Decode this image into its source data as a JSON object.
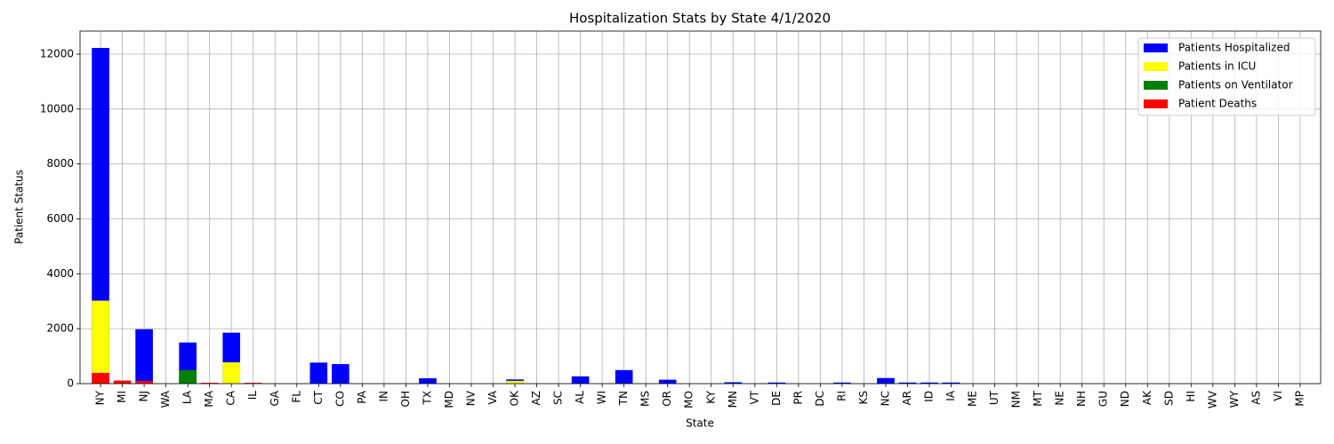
{
  "chart_data": {
    "type": "bar",
    "title": "Hospitalization Stats by State 4/1/2020",
    "x_label": "State",
    "y_label": "Patient Status",
    "categories": [
      "NY",
      "MI",
      "NJ",
      "WA",
      "LA",
      "MA",
      "CA",
      "IL",
      "GA",
      "FL",
      "CT",
      "CO",
      "PA",
      "IN",
      "OH",
      "TX",
      "MD",
      "NV",
      "VA",
      "OK",
      "AZ",
      "SC",
      "AL",
      "WI",
      "TN",
      "MS",
      "OR",
      "MO",
      "KY",
      "MN",
      "VT",
      "DE",
      "PR",
      "DC",
      "RI",
      "KS",
      "NC",
      "AR",
      "ID",
      "IA",
      "ME",
      "UT",
      "NM",
      "MT",
      "NE",
      "NH",
      "GU",
      "ND",
      "AK",
      "SD",
      "HI",
      "WV",
      "WY",
      "AS",
      "VI",
      "MP"
    ],
    "series": [
      {
        "name": "Patients Hospitalized",
        "color": "#0000ff",
        "values": [
          12226,
          0,
          1980,
          0,
          1498,
          0,
          1855,
          0,
          0,
          0,
          766,
          710,
          0,
          0,
          0,
          196,
          0,
          0,
          0,
          153,
          0,
          0,
          265,
          0,
          493,
          0,
          142,
          0,
          0,
          50,
          0,
          40,
          0,
          0,
          40,
          0,
          204,
          40,
          40,
          40,
          0,
          0,
          0,
          0,
          0,
          0,
          0,
          0,
          0,
          0,
          0,
          0,
          0,
          0,
          0,
          0
        ]
      },
      {
        "name": "Patients in ICU",
        "color": "#ffff00",
        "values": [
          3022,
          0,
          0,
          0,
          0,
          0,
          774,
          0,
          0,
          0,
          0,
          0,
          0,
          0,
          0,
          0,
          0,
          0,
          0,
          100,
          0,
          0,
          0,
          0,
          0,
          0,
          0,
          0,
          0,
          0,
          0,
          0,
          0,
          0,
          0,
          0,
          0,
          0,
          0,
          0,
          0,
          0,
          0,
          0,
          0,
          0,
          0,
          0,
          0,
          0,
          0,
          0,
          0,
          0,
          0,
          0
        ]
      },
      {
        "name": "Patients on Ventilator",
        "color": "#008000",
        "values": [
          0,
          0,
          0,
          0,
          490,
          0,
          0,
          0,
          0,
          0,
          0,
          0,
          0,
          0,
          0,
          0,
          0,
          0,
          0,
          0,
          0,
          0,
          0,
          0,
          0,
          0,
          0,
          0,
          0,
          0,
          0,
          0,
          0,
          0,
          0,
          0,
          0,
          0,
          0,
          0,
          0,
          0,
          0,
          0,
          0,
          0,
          0,
          0,
          0,
          0,
          0,
          0,
          0,
          0,
          0,
          0
        ]
      },
      {
        "name": "Patient Deaths",
        "color": "#ff0000",
        "values": [
          391,
          111,
          100,
          0,
          0,
          30,
          0,
          30,
          0,
          0,
          0,
          0,
          0,
          0,
          0,
          0,
          0,
          0,
          0,
          0,
          0,
          0,
          0,
          0,
          0,
          0,
          0,
          0,
          0,
          0,
          0,
          0,
          0,
          0,
          0,
          0,
          0,
          0,
          0,
          0,
          0,
          0,
          0,
          0,
          0,
          0,
          0,
          0,
          0,
          0,
          0,
          0,
          0,
          0,
          0,
          0
        ]
      }
    ],
    "ylim": [
      0,
      12840
    ],
    "yticks": [
      0,
      2000,
      4000,
      6000,
      8000,
      10000,
      12000
    ],
    "grid": true,
    "legend": "upper right"
  }
}
